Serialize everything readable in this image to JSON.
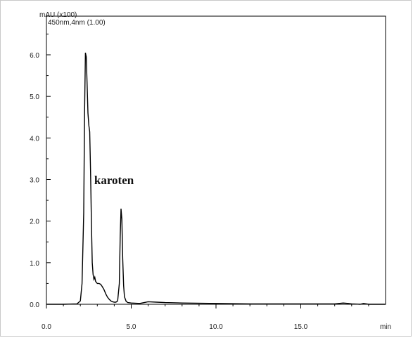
{
  "chart_data": {
    "type": "line",
    "y_unit_label": "mAU (x100)",
    "detector_label": "450nm,4nm (1.00)",
    "xlabel": "min",
    "xlim": [
      0,
      20.0
    ],
    "ylim": [
      -0.2,
      6.8
    ],
    "x_ticks": [
      0.0,
      5.0,
      10.0,
      15.0
    ],
    "x_tick_labels": [
      "0.0",
      "5.0",
      "10.0",
      "15.0"
    ],
    "y_ticks": [
      0.0,
      1.0,
      2.0,
      3.0,
      4.0,
      5.0,
      6.0
    ],
    "y_tick_labels": [
      "0.0",
      "1.0",
      "2.0",
      "3.0",
      "4.0",
      "5.0",
      "6.0"
    ],
    "grid": false,
    "series": [
      {
        "color": "#000000",
        "x": [
          0.0,
          1.0,
          1.8,
          2.0,
          2.1,
          2.2,
          2.25,
          2.3,
          2.35,
          2.4,
          2.45,
          2.5,
          2.55,
          2.6,
          2.65,
          2.7,
          2.75,
          2.8,
          2.85,
          2.9,
          3.0,
          3.1,
          3.2,
          3.3,
          3.4,
          3.5,
          3.6,
          3.7,
          3.8,
          3.9,
          4.0,
          4.1,
          4.2,
          4.3,
          4.35,
          4.4,
          4.45,
          4.5,
          4.55,
          4.6,
          4.7,
          4.8,
          5.0,
          5.5,
          6.0,
          6.5,
          7.0,
          8.0,
          10.0,
          12.0,
          15.0,
          17.0,
          17.5,
          17.8,
          18.0,
          18.5,
          18.7,
          19.0,
          20.0
        ],
        "y": [
          0.0,
          0.0,
          0.01,
          0.08,
          0.5,
          2.2,
          4.6,
          6.05,
          5.95,
          5.3,
          4.6,
          4.3,
          4.15,
          3.2,
          2.0,
          1.0,
          0.72,
          0.6,
          0.65,
          0.55,
          0.5,
          0.5,
          0.48,
          0.42,
          0.35,
          0.25,
          0.17,
          0.12,
          0.08,
          0.06,
          0.05,
          0.05,
          0.08,
          0.5,
          1.6,
          2.3,
          2.05,
          1.1,
          0.45,
          0.18,
          0.07,
          0.04,
          0.03,
          0.02,
          0.06,
          0.05,
          0.04,
          0.03,
          0.02,
          0.01,
          0.01,
          0.01,
          0.03,
          0.02,
          0.01,
          0.0,
          0.02,
          0.0,
          0.0
        ]
      }
    ],
    "annotations": [
      {
        "text": "karoten",
        "x": 4.4,
        "y": 2.3
      }
    ]
  }
}
